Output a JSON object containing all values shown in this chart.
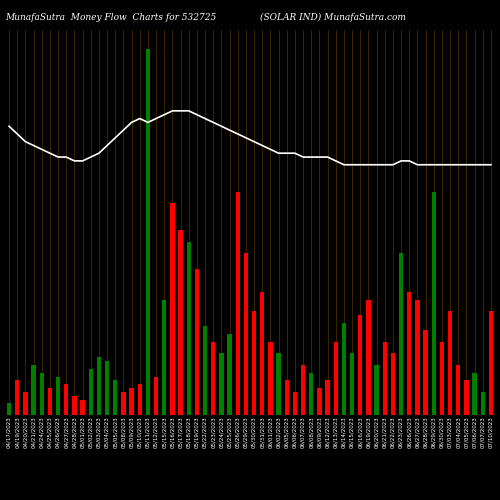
{
  "title_left": "MunafaSutra  Money Flow  Charts for 532725",
  "title_right": "(SOLAR IND) MunafaSutra.com",
  "background_color": "#000000",
  "bar_colors": [
    "green",
    "red",
    "red",
    "green",
    "green",
    "red",
    "green",
    "red",
    "red",
    "red",
    "green",
    "green",
    "green",
    "green",
    "red",
    "red",
    "red",
    "green",
    "red",
    "green",
    "red",
    "red",
    "green",
    "red",
    "green",
    "red",
    "green",
    "green",
    "red",
    "red",
    "red",
    "red",
    "red",
    "green",
    "red",
    "red",
    "red",
    "green",
    "red",
    "red",
    "red",
    "green",
    "green",
    "red",
    "red",
    "green",
    "red",
    "red",
    "green",
    "red",
    "red",
    "red",
    "green",
    "red",
    "red",
    "red",
    "red",
    "green",
    "green",
    "red"
  ],
  "bar_heights": [
    3,
    9,
    6,
    13,
    11,
    7,
    10,
    8,
    5,
    4,
    12,
    15,
    14,
    9,
    6,
    7,
    8,
    95,
    10,
    30,
    55,
    48,
    45,
    38,
    23,
    19,
    16,
    21,
    58,
    42,
    27,
    32,
    19,
    16,
    9,
    6,
    13,
    11,
    7,
    9,
    19,
    24,
    16,
    26,
    30,
    13,
    19,
    16,
    42,
    32,
    30,
    22,
    58,
    19,
    27,
    13,
    9,
    11,
    6,
    27
  ],
  "line_values": [
    75,
    73,
    71,
    70,
    69,
    68,
    67,
    67,
    66,
    66,
    67,
    68,
    70,
    72,
    74,
    76,
    77,
    76,
    77,
    78,
    79,
    79,
    79,
    78,
    77,
    76,
    75,
    74,
    73,
    72,
    71,
    70,
    69,
    68,
    68,
    68,
    67,
    67,
    67,
    67,
    66,
    65,
    65,
    65,
    65,
    65,
    65,
    65,
    66,
    66,
    65,
    65,
    65,
    65,
    65,
    65,
    65,
    65,
    65,
    65
  ],
  "grid_color": "#5a3a00",
  "line_color": "#ffffff",
  "xlabel_fontsize": 4.0,
  "title_fontsize": 6.5,
  "figsize": [
    5.0,
    5.0
  ],
  "dpi": 100
}
